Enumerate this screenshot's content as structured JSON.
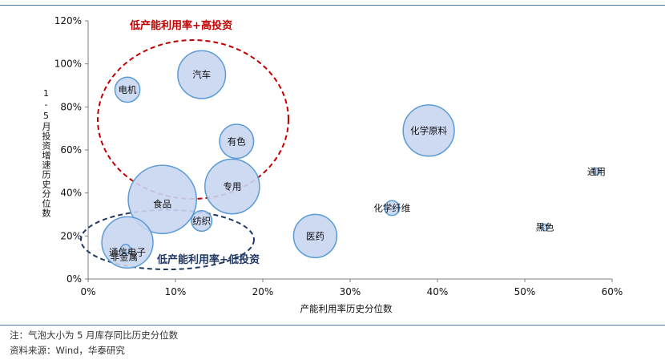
{
  "chart_data": {
    "type": "bubble",
    "xlabel": "产能利用率历史分位数",
    "ylabel": "1-5月投资增速历史分位数",
    "xlim": [
      0,
      60
    ],
    "ylim": [
      0,
      120
    ],
    "x_ticks": [
      "0%",
      "10%",
      "20%",
      "30%",
      "40%",
      "50%",
      "60%"
    ],
    "y_ticks": [
      "0%",
      "20%",
      "40%",
      "60%",
      "80%",
      "100%",
      "120%"
    ],
    "grid": false,
    "bubble_color": "#c8d6ef",
    "bubble_stroke": "#5b9bd5",
    "points": [
      {
        "label": "电机",
        "x": 4.5,
        "y": 88,
        "size": 22
      },
      {
        "label": "汽车",
        "x": 13,
        "y": 95,
        "size": 42
      },
      {
        "label": "有色",
        "x": 17,
        "y": 64,
        "size": 30
      },
      {
        "label": "专用",
        "x": 16.5,
        "y": 43,
        "size": 48
      },
      {
        "label": "食品",
        "x": 8.5,
        "y": 37,
        "size": 60
      },
      {
        "label": "纺织",
        "x": 13,
        "y": 27,
        "size": 18
      },
      {
        "label": "通信电子",
        "x": 4.5,
        "y": 17,
        "size": 45
      },
      {
        "label": "非金属",
        "x": 4.3,
        "y": 14,
        "size": 8
      },
      {
        "label": "医药",
        "x": 26,
        "y": 20,
        "size": 38
      },
      {
        "label": "化学原料",
        "x": 39,
        "y": 69,
        "size": 45
      },
      {
        "label": "化学纤维",
        "x": 34.8,
        "y": 33,
        "size": 13
      },
      {
        "label": "通用",
        "x": 58.2,
        "y": 50,
        "size": 6
      },
      {
        "label": "黑色",
        "x": 52.3,
        "y": 24,
        "size": 6
      }
    ],
    "annotations": [
      {
        "text": "低产能利用率+高投资",
        "color": "#c00000"
      },
      {
        "text": "低产能利用率+低投资",
        "color": "#1f3864"
      }
    ]
  },
  "notes": {
    "line1": "注：气泡大小为 5 月库存同比历史分位数",
    "line2": "资料来源：Wind，华泰研究"
  }
}
